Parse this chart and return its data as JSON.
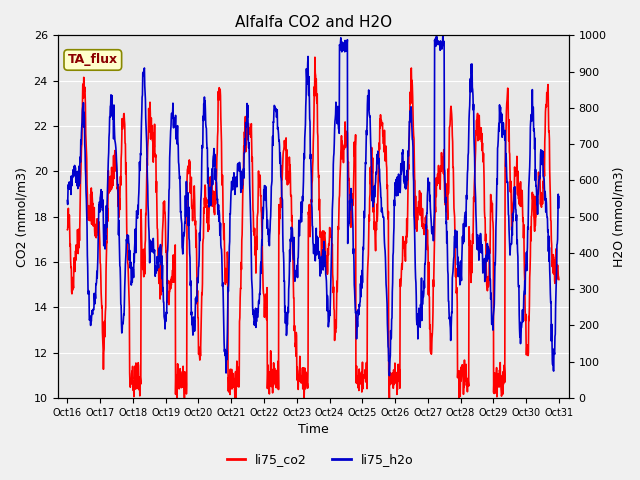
{
  "title": "Alfalfa CO2 and H2O",
  "xlabel": "Time",
  "ylabel_left": "CO2 (mmol/m3)",
  "ylabel_right": "H2O (mmol/m3)",
  "ylim_left": [
    10,
    26
  ],
  "ylim_right": [
    0,
    1000
  ],
  "yticks_left": [
    10,
    12,
    14,
    16,
    18,
    20,
    22,
    24,
    26
  ],
  "yticks_right": [
    0,
    100,
    200,
    300,
    400,
    500,
    600,
    700,
    800,
    900,
    1000
  ],
  "xtick_labels": [
    "Oct 16",
    "Oct 17",
    "Oct 18",
    "Oct 19",
    "Oct 20",
    "Oct 21",
    "Oct 22",
    "Oct 23",
    "Oct 24",
    "Oct 25",
    "Oct 26",
    "Oct 27",
    "Oct 28",
    "Oct 29",
    "Oct 30",
    "Oct 31"
  ],
  "xtick_positions": [
    16,
    17,
    18,
    19,
    20,
    21,
    22,
    23,
    24,
    25,
    26,
    27,
    28,
    29,
    30,
    31
  ],
  "co2_color": "#ff0000",
  "h2o_color": "#0000cc",
  "bg_color": "#f0f0f0",
  "plot_bg_color": "#e8e8e8",
  "annotation_text": "TA_flux",
  "annotation_bg": "#ffffcc",
  "annotation_border": "#888800",
  "legend_co2": "li75_co2",
  "legend_h2o": "li75_h2o",
  "grid_color": "#ffffff",
  "line_width": 1.2
}
